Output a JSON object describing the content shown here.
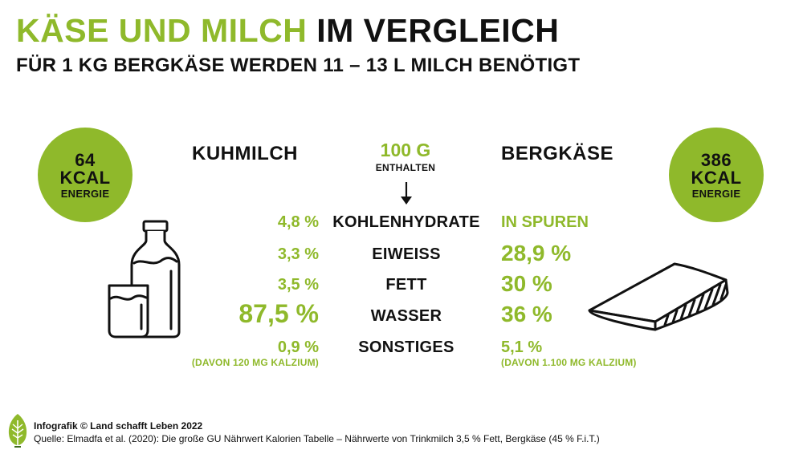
{
  "header": {
    "title_green": "KÄSE UND MILCH",
    "title_dark": "IM VERGLEICH",
    "subtitle": "FÜR 1 KG BERGKÄSE WERDEN 11 – 13 L MILCH BENÖTIGT"
  },
  "left_circle": {
    "value": "64",
    "unit": "KCAL",
    "label": "ENERGIE"
  },
  "right_circle": {
    "value": "386",
    "unit": "KCAL",
    "label": "ENERGIE"
  },
  "columns": {
    "left_title": "KUHMILCH",
    "center_title": "100 G",
    "center_subtitle": "ENTHALTEN",
    "right_title": "BERGKÄSE"
  },
  "rows": [
    {
      "nutrient": "KOHLENHYDRATE",
      "milk": "4,8 %",
      "cheese": "IN SPUREN"
    },
    {
      "nutrient": "EIWEISS",
      "milk": "3,3 %",
      "cheese": "28,9 %"
    },
    {
      "nutrient": "FETT",
      "milk": "3,5 %",
      "cheese": "30 %"
    },
    {
      "nutrient": "WASSER",
      "milk": "87,5 %",
      "cheese": "36 %"
    },
    {
      "nutrient": "SONSTIGES",
      "milk": "0,9 %",
      "cheese": "5,1 %"
    }
  ],
  "notes": {
    "milk": "(DAVON 120 MG KALZIUM)",
    "cheese": "(DAVON 1.100 MG KALZIUM)"
  },
  "footer": {
    "credit": "Infografik © Land schafft Leben 2022",
    "source": "Quelle: Elmadfa et al. (2020): Die große GU Nährwert Kalorien Tabelle – Nährwerte von Trinkmilch 3,5 % Fett, Bergkäse (45 % F.i.T.)"
  },
  "icons": [
    "milk-bottle-and-glass-icon",
    "cheese-wedge-icon",
    "down-arrow-icon",
    "leaf-logo-icon"
  ],
  "colors": {
    "accent": "#8fb92b",
    "text": "#111111",
    "background": "#ffffff"
  }
}
